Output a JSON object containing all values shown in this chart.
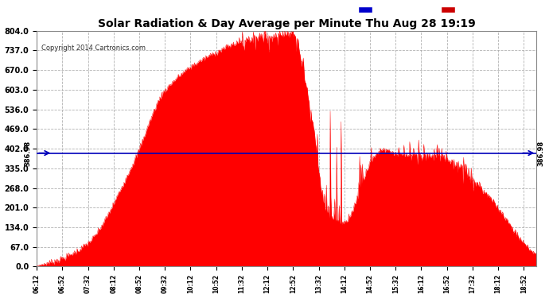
{
  "title": "Solar Radiation & Day Average per Minute Thu Aug 28 19:19",
  "copyright": "Copyright 2014 Cartronics.com",
  "median_value": 386.98,
  "y_max": 804.0,
  "y_min": 0.0,
  "yticks": [
    0.0,
    67.0,
    134.0,
    201.0,
    268.0,
    335.0,
    402.0,
    469.0,
    536.0,
    603.0,
    670.0,
    737.0,
    804.0
  ],
  "bg_color": "#ffffff",
  "plot_bg_color": "#ffffff",
  "fill_color": "#ff0000",
  "median_color": "#0000bb",
  "legend_median_bg": "#0000cc",
  "legend_radiation_bg": "#cc0000",
  "grid_color": "#aaaaaa",
  "title_color": "#000000"
}
